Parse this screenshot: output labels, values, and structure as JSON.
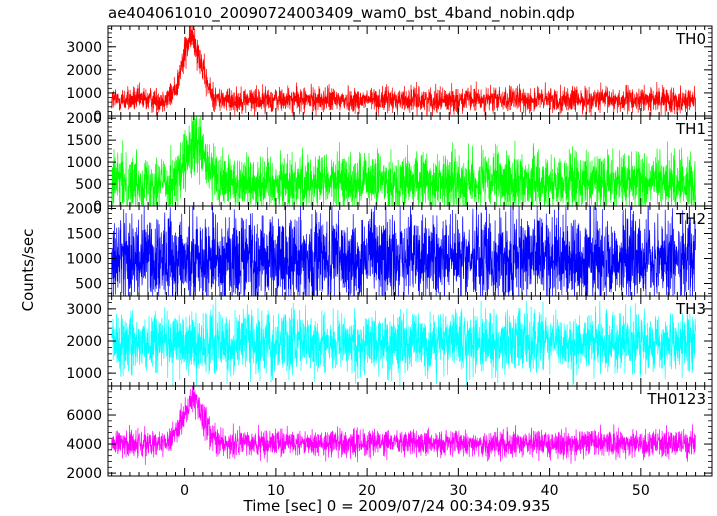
{
  "chart_data": {
    "type": "line",
    "title": "ae404061010_20090724003409_wam0_bst_4band_nobin.qdp",
    "xlabel": "Time [sec] 0 = 2009/07/24 00:34:09.935",
    "ylabel": "Counts/sec",
    "xlim": [
      -8.4,
      57.8
    ],
    "x_ticks": [
      0,
      10,
      20,
      30,
      40,
      50
    ],
    "x_range_data": [
      -8,
      56
    ],
    "grid": false,
    "legend": "none",
    "panels": [
      {
        "name": "TH0",
        "color": "#ff0000",
        "ylim": [
          0,
          3900
        ],
        "y_ticks": [
          0,
          1000,
          2000,
          3000
        ],
        "baseline": 700,
        "noise": 280,
        "flare": {
          "peak_time": 0.8,
          "peak": 2700,
          "width": 1.0
        }
      },
      {
        "name": "TH1",
        "color": "#00ff00",
        "ylim": [
          0,
          2050
        ],
        "y_ticks": [
          0,
          500,
          1000,
          1500,
          2000
        ],
        "baseline": 550,
        "noise": 330,
        "flare": {
          "peak_time": 1.2,
          "peak": 800,
          "width": 1.0
        }
      },
      {
        "name": "TH2",
        "color": "#0000ff",
        "ylim": [
          250,
          2050
        ],
        "y_ticks": [
          500,
          1000,
          1500,
          2000
        ],
        "baseline": 1000,
        "noise": 460,
        "flare": null
      },
      {
        "name": "TH3",
        "color": "#00ffff",
        "ylim": [
          600,
          3400
        ],
        "y_ticks": [
          1000,
          2000,
          3000
        ],
        "baseline": 1950,
        "noise": 480,
        "flare": null
      },
      {
        "name": "TH0123",
        "color": "#ff00ff",
        "ylim": [
          1800,
          8000
        ],
        "y_ticks": [
          2000,
          4000,
          6000
        ],
        "baseline": 4050,
        "noise": 480,
        "flare": {
          "peak_time": 0.9,
          "peak": 2900,
          "width": 1.1
        }
      }
    ]
  }
}
